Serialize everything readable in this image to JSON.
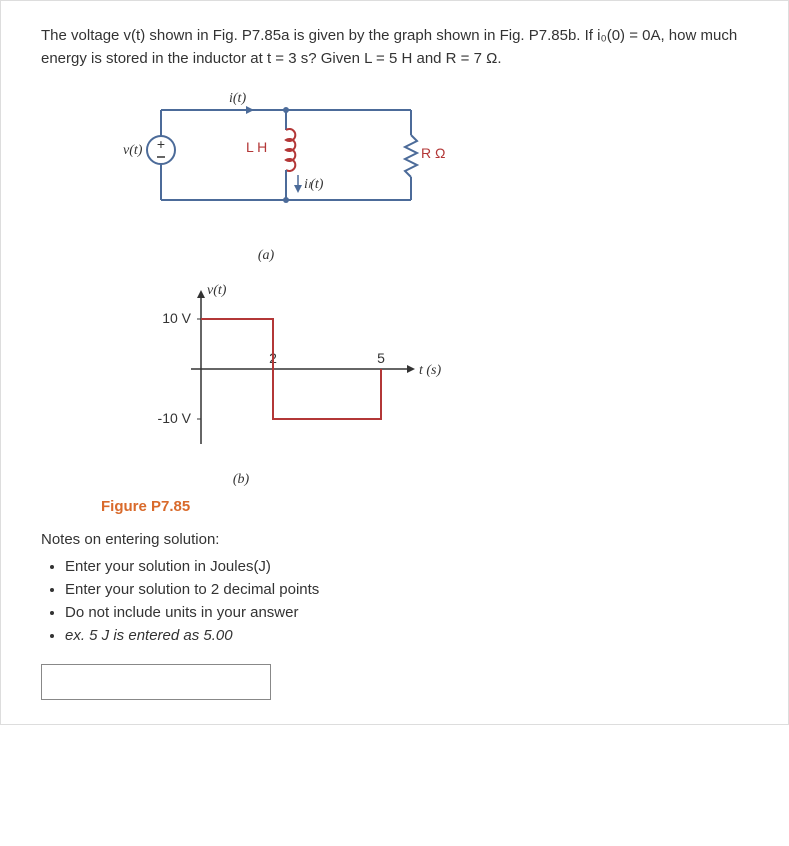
{
  "question": {
    "text": "The voltage v(t) shown in Fig. P7.85a is given by the graph shown in Fig. P7.85b. If i₀(0) = 0A, how much energy is stored in the inductor at t = 3 s? Given L = 5 H and R = 7 Ω."
  },
  "circuit": {
    "stroke_color": "#4c6b99",
    "accent_color": "#b33737",
    "source_label": "v(t)",
    "top_current_label": "i(t)",
    "inductor_label": "L H",
    "inductor_current_label": "i_L(t)",
    "resistor_label": "R Ω",
    "caption": "(a)",
    "stroke_width": 2
  },
  "graph": {
    "axis_color": "#333333",
    "trace_color": "#b33737",
    "y_label": "v(t)",
    "x_label": "t (s)",
    "y_ticks": [
      "10 V",
      "-10 V"
    ],
    "x_ticks": [
      "2",
      "5"
    ],
    "y_values": [
      10,
      -10
    ],
    "x_values": [
      0,
      2,
      5
    ],
    "trace_points": [
      [
        0,
        10
      ],
      [
        2,
        10
      ],
      [
        2,
        -10
      ],
      [
        5,
        -10
      ],
      [
        5,
        0
      ]
    ],
    "caption": "(b)",
    "stroke_width": 2
  },
  "figure_label": "Figure P7.85",
  "notes_heading": "Notes on entering solution:",
  "notes": [
    "Enter your solution in Joules(J)",
    "Enter your solution to 2 decimal points",
    "Do not include units in your answer",
    "ex. 5 J is entered as 5.00"
  ],
  "notes_italic_index": 3,
  "answer_placeholder": ""
}
